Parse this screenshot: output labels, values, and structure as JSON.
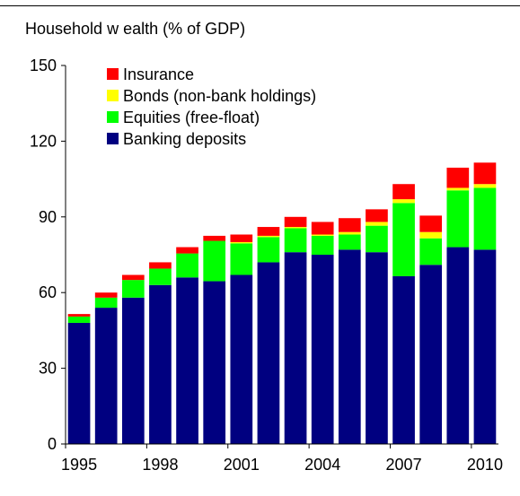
{
  "chart_data": {
    "type": "bar",
    "stacked": true,
    "title": "Household w ealth (% of GDP)",
    "xlabel": "",
    "ylabel": "",
    "ylim": [
      0,
      150
    ],
    "yticks": [
      0,
      30,
      60,
      90,
      120,
      150
    ],
    "categories": [
      "1995",
      "1996",
      "1997",
      "1998",
      "1999",
      "2000",
      "2001",
      "2002",
      "2003",
      "2004",
      "2005",
      "2006",
      "2007",
      "2008",
      "2009",
      "2010"
    ],
    "xtick_labels": [
      "1995",
      "1998",
      "2001",
      "2004",
      "2007",
      "2010"
    ],
    "grid": false,
    "legend_position": "top-left",
    "series": [
      {
        "name": "Banking deposits",
        "color": "#000080",
        "values": [
          48,
          54,
          58,
          63,
          66,
          64.5,
          67,
          72,
          76,
          75,
          77,
          76,
          66.5,
          71,
          78,
          77
        ]
      },
      {
        "name": "Equities (free-float)",
        "color": "#00ff00",
        "values": [
          2.5,
          4,
          7,
          6.5,
          9.5,
          16,
          12.5,
          10,
          9.5,
          7.5,
          6,
          10.5,
          29,
          10.5,
          22.5,
          24.5
        ]
      },
      {
        "name": "Bonds (non-bank holdings)",
        "color": "#ffff00",
        "values": [
          0,
          0,
          0,
          0,
          0,
          0,
          0.5,
          0.5,
          0.5,
          0.5,
          1,
          1.5,
          1.5,
          2.5,
          1,
          1.5
        ]
      },
      {
        "name": "Insurance",
        "color": "#ff0000",
        "values": [
          1,
          2,
          2,
          2.5,
          2.5,
          2,
          3,
          3.5,
          4,
          5,
          5.5,
          5,
          6,
          6.5,
          8,
          8.5
        ]
      }
    ]
  }
}
